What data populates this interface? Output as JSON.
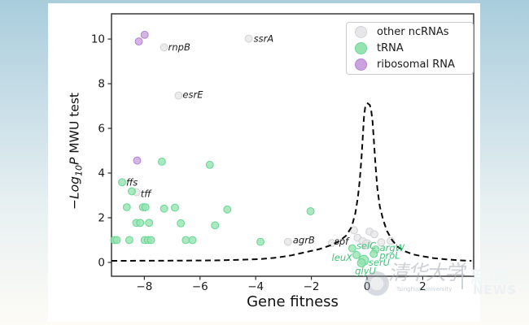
{
  "page": {
    "background_gradient": [
      "#a9cddc",
      "#e9f1f2",
      "#fdfbf6"
    ],
    "figure_background": "#ffffff"
  },
  "watermark": {
    "university_cn": "清华大学",
    "university_en": "Tsinghua University",
    "separator": "|",
    "news_cn": "新闻",
    "news_en": "NEWS"
  },
  "chart_data": {
    "type": "scatter",
    "title": "",
    "xlabel": "Gene fitness",
    "ylabel": {
      "prefix": "−Log",
      "sub": "10",
      "p": "P",
      "rest": " MWU test"
    },
    "xlim": [
      -9.18,
      3.83
    ],
    "ylim": [
      -0.62,
      11.13
    ],
    "grid": false,
    "xticks": {
      "values": [
        -8,
        -6,
        -4,
        -2,
        0,
        2
      ],
      "labels": [
        "−8",
        "−6",
        "−4",
        "−2",
        "0",
        "2"
      ]
    },
    "yticks": {
      "values": [
        0,
        2,
        4,
        6,
        8,
        10
      ],
      "labels": [
        "0",
        "2",
        "4",
        "6",
        "8",
        "10"
      ]
    },
    "legend": {
      "position": "upper right",
      "items": [
        {
          "label": "other ncRNAs",
          "fill": "#e7e7e9",
          "stroke": "#d2d2d6"
        },
        {
          "label": "tRNA",
          "fill": "#96e3b1",
          "stroke": "#67d695"
        },
        {
          "label": "ribosomal RNA",
          "fill": "#c9a2de",
          "stroke": "#b183d3"
        }
      ]
    },
    "series": [
      {
        "name": "other ncRNAs",
        "fill": "#e7e7e9",
        "stroke": "#d2d2d6",
        "label_color": "#1a1a1a",
        "points": [
          {
            "x": -4.25,
            "y": 10.02,
            "label": "ssrA",
            "dx": 6,
            "dy": 4
          },
          {
            "x": -7.29,
            "y": 9.63,
            "label": "rnpB",
            "dx": 5,
            "dy": 4
          },
          {
            "x": -6.77,
            "y": 7.47,
            "label": "esrE",
            "dx": 5,
            "dy": 3
          },
          {
            "x": -8.28,
            "y": 3.14,
            "label": "tff",
            "dx": 5,
            "dy": 6
          },
          {
            "x": -2.84,
            "y": 0.92,
            "label": "agrB",
            "dx": 6,
            "dy": 2
          },
          {
            "x": -1.26,
            "y": 0.87,
            "label": "spf",
            "dx": 3,
            "dy": 2
          },
          {
            "x": -0.47,
            "y": 1.44
          },
          {
            "x": -0.34,
            "y": 1.1
          },
          {
            "x": -0.16,
            "y": 0.96
          },
          {
            "x": 0.09,
            "y": 1.38
          },
          {
            "x": 0.26,
            "y": 1.26
          },
          {
            "x": 0.51,
            "y": 0.9
          },
          {
            "x": 0.85,
            "y": 0.96
          },
          {
            "x": -0.05,
            "y": 0.78
          },
          {
            "x": 0.0,
            "y": 0.82,
            "r": 5.5
          }
        ]
      },
      {
        "name": "tRNA",
        "fill": "#96e3b1",
        "stroke": "#67d695",
        "label_color": "#41c57b",
        "points": [
          {
            "x": -8.8,
            "y": 3.59,
            "label": "ffs",
            "dx": 5,
            "dy": 4,
            "label_color": "#1a1a1a"
          },
          {
            "x": -8.45,
            "y": 3.18
          },
          {
            "x": -7.37,
            "y": 4.51
          },
          {
            "x": -5.65,
            "y": 4.37
          },
          {
            "x": -8.63,
            "y": 2.47
          },
          {
            "x": -8.05,
            "y": 2.47
          },
          {
            "x": -7.96,
            "y": 2.47
          },
          {
            "x": -7.29,
            "y": 2.41
          },
          {
            "x": -6.9,
            "y": 2.45
          },
          {
            "x": -5.02,
            "y": 2.37
          },
          {
            "x": -2.03,
            "y": 2.29
          },
          {
            "x": -8.29,
            "y": 1.77
          },
          {
            "x": -8.15,
            "y": 1.77
          },
          {
            "x": -7.83,
            "y": 1.77
          },
          {
            "x": -6.69,
            "y": 1.75
          },
          {
            "x": -5.46,
            "y": 1.66
          },
          {
            "x": -9.08,
            "y": 1.0
          },
          {
            "x": -8.99,
            "y": 1.0
          },
          {
            "x": -8.54,
            "y": 1.0
          },
          {
            "x": -7.99,
            "y": 1.0
          },
          {
            "x": -7.87,
            "y": 1.0
          },
          {
            "x": -7.76,
            "y": 1.0
          },
          {
            "x": -6.51,
            "y": 1.0
          },
          {
            "x": -6.27,
            "y": 1.0
          },
          {
            "x": -3.83,
            "y": 0.92
          },
          {
            "x": -0.53,
            "y": 0.63,
            "label": "selC",
            "dx": 5,
            "dy": 1
          },
          {
            "x": 0.31,
            "y": 0.58,
            "label": "argW",
            "dx": 5,
            "dy": 2
          },
          {
            "x": 0.24,
            "y": 0.38,
            "label": "proL",
            "dx": 7,
            "dy": 6
          },
          {
            "x": -0.38,
            "y": 0.33,
            "label": "leuX",
            "anchor": "end",
            "dx": -5,
            "dy": 7
          },
          {
            "x": -0.12,
            "y": 0.1,
            "label": "serU",
            "dx": 6,
            "dy": 7,
            "r": 6
          },
          {
            "x": -0.2,
            "y": -0.02,
            "label": "glyU",
            "dx": -8,
            "dy": 14,
            "r": 5
          }
        ]
      },
      {
        "name": "ribosomal RNA",
        "fill": "#c9a2de",
        "stroke": "#b183d3",
        "label_color": "#1a1a1a",
        "points": [
          {
            "x": -7.99,
            "y": 10.19
          },
          {
            "x": -8.2,
            "y": 9.89
          },
          {
            "x": -8.26,
            "y": 4.56
          }
        ]
      }
    ],
    "threshold_curve": {
      "style": "dashed",
      "color": "#0a0a0a",
      "points": [
        [
          -9.18,
          0.07
        ],
        [
          -7.0,
          0.08
        ],
        [
          -5.5,
          0.09
        ],
        [
          -4.5,
          0.12
        ],
        [
          -3.8,
          0.15
        ],
        [
          -3.2,
          0.22
        ],
        [
          -2.7,
          0.32
        ],
        [
          -2.2,
          0.46
        ],
        [
          -1.7,
          0.6
        ],
        [
          -1.3,
          0.77
        ],
        [
          -1.0,
          0.95
        ],
        [
          -0.75,
          1.2
        ],
        [
          -0.55,
          1.6
        ],
        [
          -0.42,
          2.2
        ],
        [
          -0.33,
          2.9
        ],
        [
          -0.26,
          3.7
        ],
        [
          -0.2,
          4.7
        ],
        [
          -0.15,
          5.7
        ],
        [
          -0.11,
          6.5
        ],
        [
          -0.06,
          7.0
        ],
        [
          0.02,
          7.12
        ],
        [
          0.1,
          7.05
        ],
        [
          0.15,
          6.8
        ],
        [
          0.2,
          6.3
        ],
        [
          0.25,
          5.4
        ],
        [
          0.3,
          4.4
        ],
        [
          0.37,
          3.3
        ],
        [
          0.46,
          2.5
        ],
        [
          0.58,
          1.9
        ],
        [
          0.72,
          1.4
        ],
        [
          0.9,
          1.0
        ],
        [
          1.1,
          0.7
        ],
        [
          1.35,
          0.5
        ],
        [
          1.65,
          0.36
        ],
        [
          2.0,
          0.27
        ],
        [
          2.4,
          0.19
        ],
        [
          2.9,
          0.13
        ],
        [
          3.4,
          0.09
        ],
        [
          3.75,
          0.07
        ]
      ]
    }
  }
}
